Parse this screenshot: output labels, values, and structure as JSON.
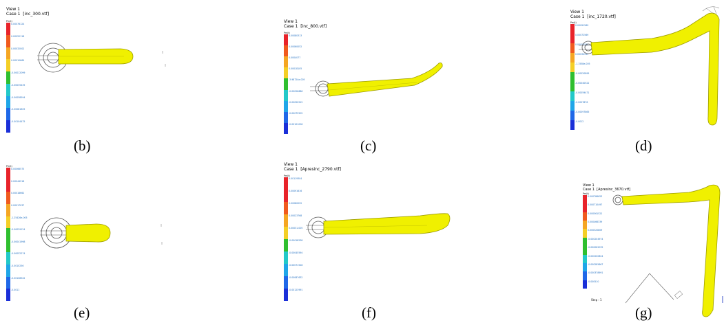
{
  "colors": {
    "tube_fill": "#f0f000",
    "tube_stroke": "#9c9c00",
    "ring": "#555555",
    "legend_text": "#1e6dc0",
    "legend_scale": [
      "#e8232a",
      "#f05a1e",
      "#f5a623",
      "#f4cf26",
      "#2fbf2f",
      "#22c9c9",
      "#1fa6e8",
      "#1f68e8",
      "#1a2fd8"
    ]
  },
  "panels": [
    {
      "id": "b",
      "caption": "(b)",
      "header": [
        "View 1",
        "Case 1  [inc_300.vtf]"
      ],
      "unit": "Pm(t)",
      "ticks": [
        "0.00076124",
        "0.00052118",
        "0.00032002",
        "0.00010669",
        "-0.00012099",
        "-0.00035435",
        "-0.00058594",
        "-0.00081625",
        "-0.00104475"
      ]
    },
    {
      "id": "c",
      "caption": "(c)",
      "header": [
        "View 1",
        "Case 1  [inc_800.vtf]"
      ],
      "unit": "Pm(t)",
      "ticks": [
        "0.00080313",
        "0.00060052",
        "0.0004077",
        "0.00018105",
        "-3.98724e-005",
        "-0.00026686",
        "-0.00050915",
        "-0.00075505",
        "-0.00101006"
      ]
    },
    {
      "id": "d",
      "caption": "(d)",
      "header": [
        "View 1",
        "Case 1  [inc_1720.vtf]"
      ],
      "unit": "Pm(t)",
      "ticks": [
        "0.00091569",
        "0.00072569",
        "0.00053542",
        "0.00034515",
        "-1.1558e-005",
        "-0.00020895",
        "-0.00040522",
        "-0.00059471",
        "-0.0007876",
        "-0.00097865",
        "-0.0012"
      ]
    },
    {
      "id": "e",
      "caption": "(e)",
      "header": [],
      "unit": "Pm(t)",
      "ticks": [
        "0.00066573",
        "0.00044218",
        "0.00018662",
        "0.00017037",
        "-1.25426e-005",
        "-0.00029124",
        "-0.00041998",
        "-0.00052274",
        "-0.0010256",
        "-0.00108942",
        "-0.0011"
      ]
    },
    {
      "id": "f",
      "caption": "(f)",
      "header": [
        "View 1",
        "Case 1  [Apresinc_2790.vtf]"
      ],
      "unit": "Pm(t)",
      "ticks": [
        "0.00119304",
        "0.00091616",
        "0.00080092",
        "0.00023768",
        "0.00031-005",
        "-0.00018538",
        "-0.00045594",
        "-0.00071528",
        "-0.00087632",
        "-0.00123991"
      ]
    },
    {
      "id": "g",
      "caption": "(g)",
      "header": [
        "View 1",
        "Case 1  [Apresinc_3670.vtf]"
      ],
      "unit": "Pm(t)",
      "step": "Step : 1",
      "ticks": [
        "0.000786653",
        "0.000710497",
        "0.000561522",
        "0.000466339",
        "0.000320809",
        "-0.000204974",
        "-0.000062035",
        "-0.000200824",
        "-0.000285667",
        "-0.000378991",
        "-0.000510"
      ]
    }
  ]
}
